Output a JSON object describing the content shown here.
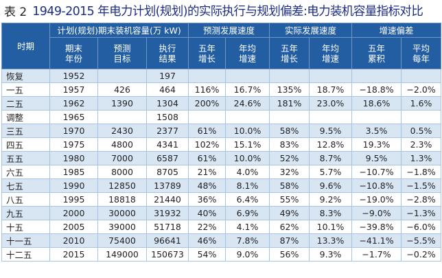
{
  "title": {
    "label": "表 2",
    "text": "1949-2015 年电力计划(规划)的实际执行与规划偏差:电力装机容量指标对比"
  },
  "header": {
    "period": "时期",
    "group_plan": "计划(规划)期末装机容量(万 kW)",
    "group_forecast": "预测发展速度",
    "group_actual": "实际发展速度",
    "group_deviation": "增速偏差",
    "col_year": [
      "期末",
      "年份"
    ],
    "col_target": [
      "预测",
      "目标"
    ],
    "col_result": [
      "执行",
      "结果"
    ],
    "col_f5": [
      "五年",
      "增长"
    ],
    "col_fa": [
      "年均",
      "增速"
    ],
    "col_a5": [
      "五年",
      "增长"
    ],
    "col_aa": [
      "年均",
      "增速"
    ],
    "col_d5": [
      "五年",
      "累积"
    ],
    "col_da": [
      "平均",
      "每年"
    ]
  },
  "rows": [
    [
      "恢复",
      "1952",
      "",
      "197",
      "",
      "",
      "",
      "",
      "",
      ""
    ],
    [
      "一五",
      "1957",
      "426",
      "464",
      "116%",
      "16.7%",
      "135%",
      "18.7%",
      "−18.8%",
      "−2.0%"
    ],
    [
      "二五",
      "1962",
      "1390",
      "1304",
      "200%",
      "24.6%",
      "181%",
      "23.0%",
      "18.6%",
      "1.6%"
    ],
    [
      "调整",
      "1965",
      "",
      "1508",
      "",
      "",
      "",
      "",
      "",
      ""
    ],
    [
      "三五",
      "1970",
      "2430",
      "2377",
      "61%",
      "10.0%",
      "58%",
      "9.5%",
      "3.5%",
      "0.5%"
    ],
    [
      "四五",
      "1975",
      "4800",
      "4341",
      "102%",
      "15.1%",
      "83%",
      "12.8%",
      "19.3%",
      "2.3%"
    ],
    [
      "五五",
      "1980",
      "7000",
      "6587",
      "61%",
      "10.0%",
      "52%",
      "8.7%",
      "9.5%",
      "1.3%"
    ],
    [
      "六五",
      "1985",
      "8000",
      "8705",
      "21%",
      "4.0%",
      "32%",
      "5.7%",
      "−10.7%",
      "−1.8%"
    ],
    [
      "七五",
      "1990",
      "12850",
      "13789",
      "48%",
      "8.1%",
      "58%",
      "9.6%",
      "−10.8%",
      "−1.5%"
    ],
    [
      "八五",
      "1995",
      "18818",
      "21440",
      "36%",
      "6.4%",
      "55%",
      "9.2%",
      "−19.0%",
      "−2.8%"
    ],
    [
      "九五",
      "2000",
      "30000",
      "31932",
      "40%",
      "6.9%",
      "49%",
      "8.3%",
      "−9.0%",
      "−1.3%"
    ],
    [
      "十五",
      "2005",
      "39000",
      "51718",
      "22%",
      "4.1%",
      "62%",
      "10.1%",
      "−39.8%",
      "−6.0%"
    ],
    [
      "十一五",
      "2010",
      "75400",
      "96641",
      "46%",
      "7.8%",
      "87%",
      "13.3%",
      "−41.1%",
      "−5.5%"
    ],
    [
      "十二五",
      "2015",
      "149000",
      "150673",
      "54%",
      "9.0%",
      "56%",
      "9.3%",
      "−1.7%",
      "−0.2%"
    ]
  ]
}
